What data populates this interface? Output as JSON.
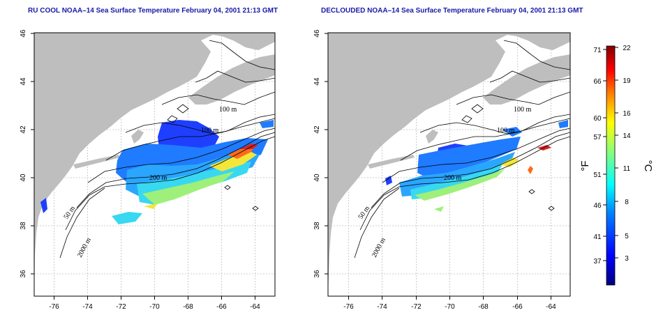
{
  "maps": [
    {
      "id": "rucool",
      "title": "RU COOL NOAA–14 Sea Surface Temperature February 04, 2001 21:13 GMT",
      "lat_ticks": [
        "46",
        "44",
        "42",
        "40",
        "38",
        "36"
      ],
      "lon_ticks": [
        "-76",
        "-74",
        "-72",
        "-70",
        "-68",
        "-66",
        "-64"
      ],
      "contour_labels": [
        "100 m",
        "100 m",
        "200 m",
        "50 m",
        "2000 m"
      ]
    },
    {
      "id": "declouded",
      "title": "DECLOUDED NOAA–14 Sea Surface Temperature February 04, 2001 21:13 GMT",
      "lat_ticks": [
        "46",
        "44",
        "42",
        "40",
        "38",
        "36"
      ],
      "lon_ticks": [
        "-76",
        "-74",
        "-72",
        "-70",
        "-68",
        "-66",
        "-64"
      ],
      "contour_labels": [
        "100 m",
        "100 m",
        "200 m",
        "50 m",
        "2000 m"
      ]
    }
  ],
  "colorbar": {
    "fahrenheit_unit": "°F",
    "celsius_unit": "°C",
    "fahrenheit_ticks": [
      "71",
      "66",
      "60",
      "57",
      "51",
      "46",
      "41",
      "37"
    ],
    "celsius_ticks": [
      "22",
      "19",
      "16",
      "14",
      "11",
      "8",
      "5",
      "3"
    ],
    "range_c": [
      0,
      22
    ],
    "colors": [
      "#00007f",
      "#0000ff",
      "#0080ff",
      "#00ffff",
      "#80ff80",
      "#ffff00",
      "#ff8000",
      "#ff0000",
      "#800000"
    ]
  },
  "colors": {
    "land": "#bebebe",
    "ocean": "#ffffff",
    "contour": "#000000",
    "grid": "#bdbdbd",
    "title": "#1a1aa8"
  }
}
